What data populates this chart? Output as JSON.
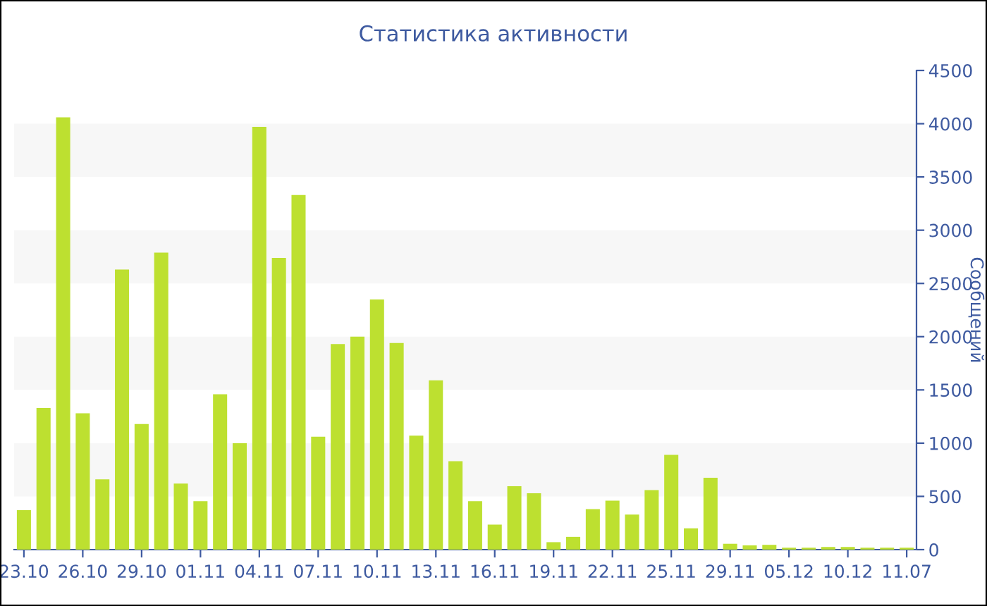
{
  "chart_data": {
    "type": "bar",
    "title": "Статистика активности",
    "ylabel": "Сообщений",
    "categories": [
      "23.10",
      null,
      null,
      "26.10",
      null,
      null,
      "29.10",
      null,
      null,
      "01.11",
      null,
      null,
      "04.11",
      null,
      null,
      "07.11",
      null,
      null,
      "10.11",
      null,
      null,
      "13.11",
      null,
      null,
      "16.11",
      null,
      null,
      "19.11",
      null,
      null,
      "22.11",
      null,
      null,
      "25.11",
      null,
      null,
      "29.11",
      null,
      null,
      "05.12",
      null,
      null,
      "10.12",
      null,
      null,
      "11.07"
    ],
    "values": [
      370,
      1330,
      4060,
      1280,
      660,
      2630,
      1180,
      2790,
      620,
      455,
      1460,
      1000,
      3970,
      2740,
      3330,
      1060,
      1930,
      2000,
      2350,
      1940,
      1070,
      1590,
      830,
      455,
      235,
      595,
      530,
      70,
      120,
      380,
      460,
      330,
      560,
      890,
      200,
      675,
      55,
      40,
      45,
      18,
      18,
      25,
      25,
      18,
      18,
      18
    ],
    "color": "#bde030",
    "ylim": [
      0,
      4500
    ],
    "yticks": [
      0,
      500,
      1000,
      1500,
      2000,
      2500,
      3000,
      3500,
      4000,
      4500
    ],
    "bands": [
      {
        "axis": "y",
        "from": 500,
        "to": 1000,
        "color": "#f7f7f7"
      },
      {
        "axis": "y",
        "from": 1500,
        "to": 2000,
        "color": "#f7f7f7"
      },
      {
        "axis": "y",
        "from": 2500,
        "to": 3000,
        "color": "#f7f7f7"
      },
      {
        "axis": "y",
        "from": 3500,
        "to": 4000,
        "color": "#f7f7f7"
      }
    ],
    "grid": false,
    "legend": false
  }
}
